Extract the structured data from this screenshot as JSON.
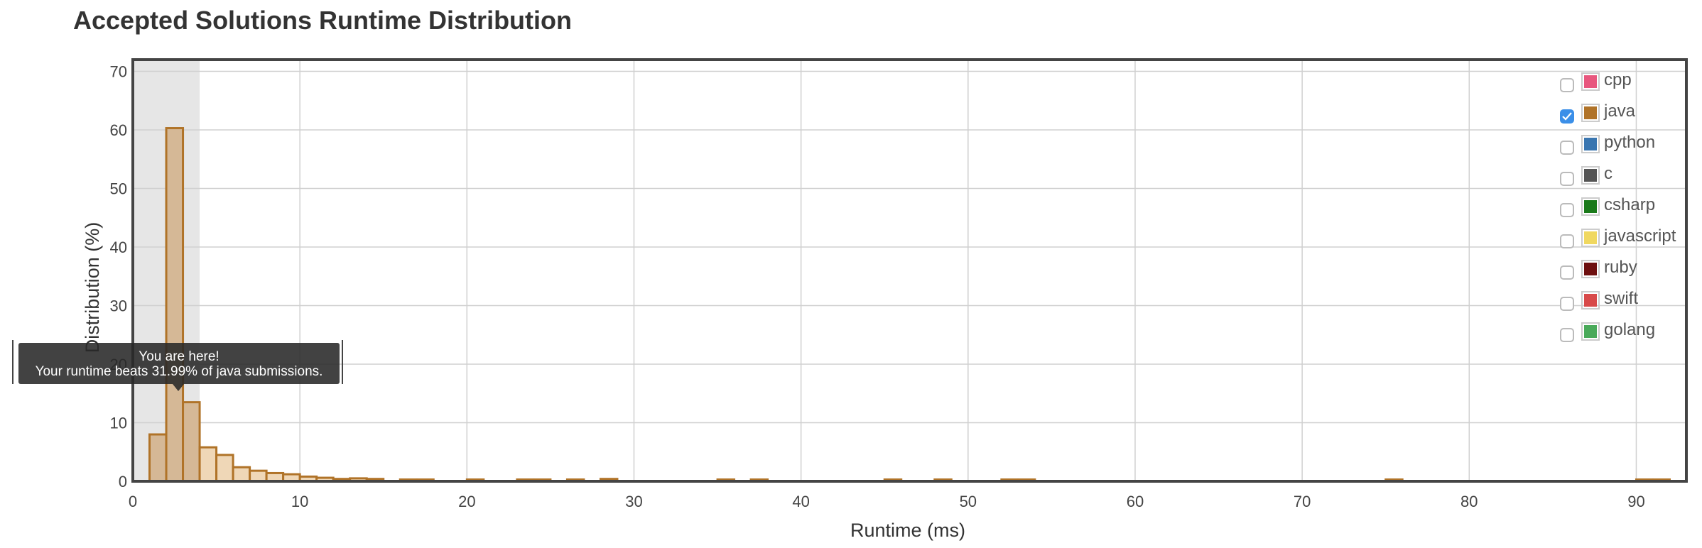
{
  "page": {
    "title": "Accepted Solutions Runtime Distribution"
  },
  "tooltip": {
    "line1": "You are here!",
    "line2": "Your runtime beats 31.99% of java submissions."
  },
  "legend": [
    {
      "label": "cpp",
      "color": "#e8577e",
      "checked": false
    },
    {
      "label": "java",
      "color": "#b07328",
      "checked": true
    },
    {
      "label": "python",
      "color": "#3a76b0",
      "checked": false
    },
    {
      "label": "c",
      "color": "#555555",
      "checked": false
    },
    {
      "label": "csharp",
      "color": "#1a7a1a",
      "checked": false
    },
    {
      "label": "javascript",
      "color": "#f0d860",
      "checked": false
    },
    {
      "label": "ruby",
      "color": "#6e1010",
      "checked": false
    },
    {
      "label": "swift",
      "color": "#d84a4a",
      "checked": false
    },
    {
      "label": "golang",
      "color": "#4aaa5a",
      "checked": false
    }
  ],
  "chart_data": {
    "type": "bar",
    "title": "Accepted Solutions Runtime Distribution",
    "xlabel": "Runtime (ms)",
    "ylabel": "Distribution (%)",
    "xlim": [
      0,
      93
    ],
    "ylim": [
      0,
      72
    ],
    "xticks": [
      0,
      10,
      20,
      30,
      40,
      50,
      60,
      70,
      80,
      90
    ],
    "yticks": [
      0,
      10,
      20,
      30,
      40,
      50,
      60,
      70
    ],
    "grid": true,
    "legend_position": "top-right",
    "highlight_range": [
      0,
      4
    ],
    "bin_width": 1,
    "series": [
      {
        "name": "java",
        "color": "#b07328",
        "x": [
          1,
          2,
          3,
          4,
          5,
          6,
          7,
          8,
          9,
          10,
          11,
          12,
          13,
          14,
          16,
          17,
          20,
          23,
          24,
          26,
          28,
          35,
          37,
          45,
          48,
          52,
          53,
          75,
          90,
          91
        ],
        "values": [
          8,
          60.3,
          13.5,
          5.8,
          4.5,
          2.4,
          1.8,
          1.4,
          1.2,
          0.8,
          0.6,
          0.4,
          0.5,
          0.4,
          0.3,
          0.3,
          0.3,
          0.3,
          0.3,
          0.3,
          0.4,
          0.3,
          0.3,
          0.3,
          0.3,
          0.3,
          0.3,
          0.3,
          0.3,
          0.3
        ]
      }
    ]
  }
}
